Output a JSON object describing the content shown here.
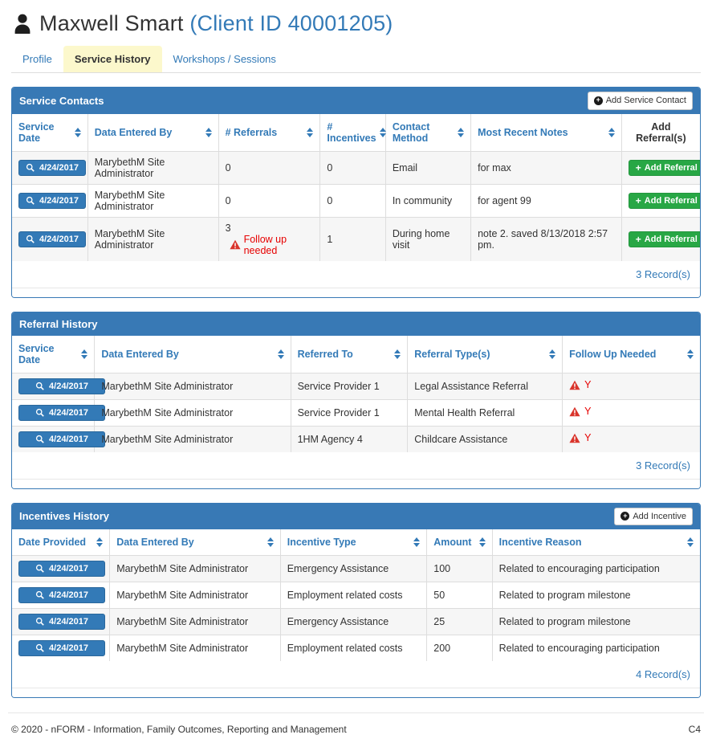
{
  "colors": {
    "accent_blue": "#337ab7",
    "panel_header_blue": "#3879b5",
    "success_green": "#28a745",
    "danger_red": "#e60000",
    "active_tab_yellow": "#fcf8cc"
  },
  "header": {
    "client_name": "Maxwell Smart",
    "client_id": "(Client ID 40001205)"
  },
  "tabs": {
    "profile": "Profile",
    "service_history": "Service History",
    "workshops": "Workshops / Sessions"
  },
  "panels": {
    "service_contacts": {
      "title": "Service Contacts",
      "add_button_label": "Add Service Contact",
      "columns": [
        "Service Date",
        "Data Entered By",
        "# Referrals",
        "# Incentives",
        "Contact Method",
        "Most Recent Notes",
        "Add Referral(s)"
      ],
      "add_referral_button_label": "Add Referral",
      "follow_up_label": "Follow up needed",
      "rows": [
        {
          "service_date": "4/24/2017",
          "data_entered_by": "MarybethM Site Administrator",
          "referrals": "0",
          "follow_up_needed": false,
          "incentives": "0",
          "contact_method": "Email",
          "most_recent_notes": "for max"
        },
        {
          "service_date": "4/24/2017",
          "data_entered_by": "MarybethM Site Administrator",
          "referrals": "0",
          "follow_up_needed": false,
          "incentives": "0",
          "contact_method": "In community",
          "most_recent_notes": "for agent 99"
        },
        {
          "service_date": "4/24/2017",
          "data_entered_by": "MarybethM Site Administrator",
          "referrals": "3",
          "follow_up_needed": true,
          "incentives": "1",
          "contact_method": "During home visit",
          "most_recent_notes": "note 2. saved 8/13/2018 2:57 pm."
        }
      ],
      "record_count": "3 Record(s)"
    },
    "referral_history": {
      "title": "Referral History",
      "columns": [
        "Service Date",
        "Data Entered By",
        "Referred To",
        "Referral Type(s)",
        "Follow Up Needed"
      ],
      "rows": [
        {
          "service_date": "4/24/2017",
          "data_entered_by": "MarybethM Site Administrator",
          "referred_to": "Service Provider 1",
          "referral_types": "Legal Assistance Referral",
          "follow_up_needed": "Y"
        },
        {
          "service_date": "4/24/2017",
          "data_entered_by": "MarybethM Site Administrator",
          "referred_to": "Service Provider 1",
          "referral_types": "Mental Health Referral",
          "follow_up_needed": "Y"
        },
        {
          "service_date": "4/24/2017",
          "data_entered_by": "MarybethM Site Administrator",
          "referred_to": "1HM Agency 4",
          "referral_types": "Childcare Assistance",
          "follow_up_needed": "Y"
        }
      ],
      "record_count": "3 Record(s)"
    },
    "incentives_history": {
      "title": "Incentives History",
      "add_button_label": "Add Incentive",
      "columns": [
        "Date Provided",
        "Data Entered By",
        "Incentive Type",
        "Amount",
        "Incentive Reason"
      ],
      "rows": [
        {
          "date_provided": "4/24/2017",
          "data_entered_by": "MarybethM Site Administrator",
          "incentive_type": "Emergency Assistance",
          "amount": "100",
          "incentive_reason": "Related to encouraging participation"
        },
        {
          "date_provided": "4/24/2017",
          "data_entered_by": "MarybethM Site Administrator",
          "incentive_type": "Employment related costs",
          "amount": "50",
          "incentive_reason": "Related to program milestone"
        },
        {
          "date_provided": "4/24/2017",
          "data_entered_by": "MarybethM Site Administrator",
          "incentive_type": "Emergency Assistance",
          "amount": "25",
          "incentive_reason": "Related to program milestone"
        },
        {
          "date_provided": "4/24/2017",
          "data_entered_by": "MarybethM Site Administrator",
          "incentive_type": "Employment related costs",
          "amount": "200",
          "incentive_reason": "Related to encouraging participation"
        }
      ],
      "record_count": "4 Record(s)"
    }
  },
  "footer": {
    "copyright": "© 2020 - nFORM - Information, Family Outcomes, Reporting and Management",
    "page_code": "C4"
  }
}
